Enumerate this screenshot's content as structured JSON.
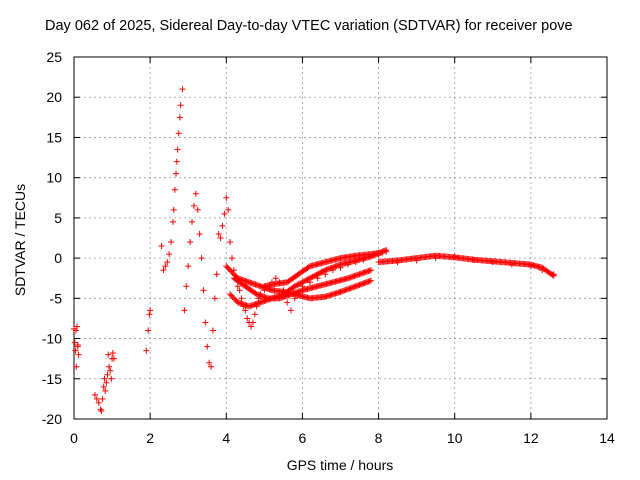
{
  "chart_data": {
    "type": "scatter",
    "title": "Day 062 of 2025, Sidereal Day-to-day VTEC variation (SDTVAR) for receiver pove",
    "xlabel": "GPS time / hours",
    "ylabel": "SDTVAR / TECUs",
    "xlim": [
      0,
      14
    ],
    "ylim": [
      -20,
      25
    ],
    "xticks": [
      "0",
      "2",
      "4",
      "6",
      "8",
      "10",
      "12",
      "14"
    ],
    "yticks": [
      "-20",
      "-15",
      "-10",
      "-5",
      "0",
      "5",
      "10",
      "15",
      "20",
      "25"
    ],
    "grid": true,
    "marker": "+",
    "color": "#ff0000",
    "series": [
      {
        "name": "pove",
        "x": [
          0.0,
          0.02,
          0.04,
          0.06,
          0.08,
          0.1,
          0.12,
          0.05,
          0.1,
          0.55,
          0.6,
          0.65,
          0.7,
          0.72,
          0.75,
          0.78,
          0.8,
          0.82,
          0.85,
          0.88,
          0.9,
          0.92,
          0.95,
          0.98,
          1.0,
          1.02,
          1.05,
          1.9,
          1.95,
          1.98,
          2.0,
          2.3,
          2.35,
          2.4,
          2.45,
          2.5,
          2.55,
          2.6,
          2.62,
          2.65,
          2.68,
          2.7,
          2.72,
          2.75,
          2.78,
          2.8,
          2.85,
          2.9,
          2.95,
          3.0,
          3.05,
          3.1,
          3.15,
          3.2,
          3.25,
          3.3,
          3.35,
          3.4,
          3.45,
          3.5,
          3.55,
          3.6,
          3.65,
          3.7,
          3.75,
          3.8,
          3.85,
          3.9,
          3.95,
          4.0,
          4.05,
          4.1,
          4.15,
          4.2,
          4.25,
          4.3,
          4.35,
          4.4,
          4.45,
          4.5,
          4.55,
          4.6,
          4.65,
          4.7,
          4.75,
          4.8,
          4.85,
          4.9,
          5.0,
          5.1,
          5.2,
          5.3,
          5.4,
          5.5,
          5.6,
          5.7,
          5.8,
          5.9,
          6.0,
          6.2,
          6.4,
          6.6,
          6.8,
          7.0,
          7.2,
          7.4,
          7.6,
          7.8,
          8.0,
          8.2,
          8.5,
          9.0,
          9.5,
          10.0,
          10.5,
          11.0,
          11.5,
          12.0,
          12.3,
          12.6
        ],
        "y": [
          -8.8,
          -10.5,
          -11.5,
          -13.5,
          -8.5,
          -11.0,
          -12.0,
          -9.0,
          -10.8,
          -17.0,
          -17.5,
          -18.0,
          -18.8,
          -19.0,
          -17.5,
          -16.0,
          -15.0,
          -16.5,
          -15.5,
          -14.5,
          -12.0,
          -13.5,
          -14.0,
          -15.0,
          -12.5,
          -11.8,
          -12.5,
          -11.5,
          -9.0,
          -7.0,
          -6.5,
          1.5,
          -1.5,
          -1.0,
          -0.5,
          0.5,
          2.0,
          4.5,
          6.0,
          8.5,
          10.5,
          12.0,
          13.5,
          15.5,
          17.5,
          19.0,
          21.0,
          -6.5,
          -3.5,
          -1.0,
          2.0,
          4.5,
          6.5,
          8.0,
          6.0,
          3.0,
          0.0,
          -4.0,
          -8.0,
          -11.0,
          -13.0,
          -13.5,
          -9.0,
          -5.0,
          -2.0,
          3.0,
          2.5,
          4.0,
          5.5,
          7.5,
          6.0,
          2.0,
          0.0,
          -1.5,
          -2.5,
          -3.5,
          -4.0,
          -5.0,
          -6.0,
          -6.5,
          -7.5,
          -8.0,
          -8.5,
          -8.0,
          -7.0,
          -6.0,
          -5.0,
          -4.5,
          -4.0,
          -3.5,
          -3.0,
          -2.5,
          -3.0,
          -4.0,
          -5.5,
          -6.5,
          -5.0,
          -4.5,
          -3.5,
          -3.0,
          -2.5,
          -2.0,
          -1.5,
          -1.2,
          -0.8,
          -0.5,
          -0.2,
          0.2,
          0.5,
          0.8,
          -0.5,
          -0.3,
          0.0,
          0.2,
          -0.2,
          -0.5,
          -0.8,
          -1.0,
          -1.5,
          -2.0
        ]
      }
    ],
    "tracks": [
      {
        "x": [
          4.1,
          4.3,
          4.6,
          4.9,
          5.2,
          5.5,
          5.8,
          6.2,
          6.6,
          7.0,
          7.4,
          7.8,
          8.0,
          8.2
        ],
        "y": [
          -4.5,
          -5.5,
          -6.0,
          -5.5,
          -5.0,
          -4.5,
          -3.5,
          -2.5,
          -1.5,
          -0.8,
          -0.3,
          0.2,
          0.6,
          1.0
        ]
      },
      {
        "x": [
          4.2,
          4.5,
          4.8,
          5.1,
          5.4,
          5.7,
          6.0,
          6.4,
          6.8,
          7.2,
          7.5,
          7.8
        ],
        "y": [
          -2.5,
          -3.5,
          -4.5,
          -5.0,
          -5.0,
          -4.5,
          -4.0,
          -3.5,
          -3.0,
          -2.5,
          -2.0,
          -1.5
        ]
      },
      {
        "x": [
          4.0,
          4.3,
          4.6,
          4.9,
          5.2,
          5.5,
          5.8,
          6.2,
          6.6,
          7.0,
          7.4,
          7.8
        ],
        "y": [
          -1.0,
          -2.5,
          -3.0,
          -3.5,
          -4.0,
          -4.2,
          -4.5,
          -5.0,
          -4.8,
          -4.2,
          -3.5,
          -2.8
        ]
      },
      {
        "x": [
          8.0,
          8.5,
          9.0,
          9.5,
          10.0,
          10.5,
          11.0,
          11.5,
          12.0,
          12.3,
          12.6
        ],
        "y": [
          -0.5,
          -0.3,
          0.0,
          0.3,
          0.1,
          -0.2,
          -0.4,
          -0.6,
          -0.8,
          -1.2,
          -2.2
        ]
      },
      {
        "x": [
          5.0,
          5.3,
          5.6,
          5.9,
          6.2,
          6.6,
          7.0,
          7.4,
          7.8,
          8.1
        ],
        "y": [
          -3.5,
          -3.2,
          -3.0,
          -2.0,
          -1.0,
          -0.5,
          0.0,
          0.3,
          0.5,
          0.7
        ]
      }
    ]
  }
}
